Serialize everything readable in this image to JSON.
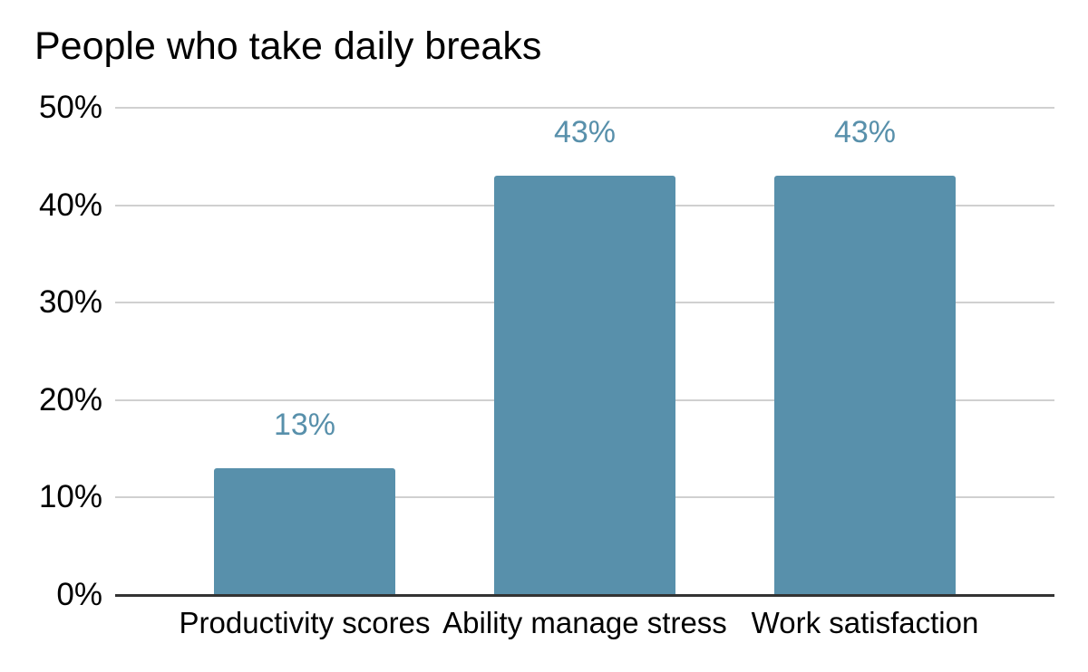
{
  "chart_data": {
    "type": "bar",
    "title": "People who take daily breaks",
    "categories": [
      "Productivity scores",
      "Ability manage stress",
      "Work satisfaction"
    ],
    "values": [
      13,
      43,
      43
    ],
    "data_labels": [
      "13%",
      "43%",
      "43%"
    ],
    "yticks": {
      "values": [
        0,
        10,
        20,
        30,
        40,
        50
      ],
      "labels": [
        "0%",
        "10%",
        "20%",
        "30%",
        "40%",
        "50%"
      ]
    },
    "ylim": [
      0,
      50
    ],
    "xlabel": "",
    "ylabel": "",
    "grid": true,
    "legend_position": "none",
    "colors": {
      "bar": "#5890ab",
      "data_label": "#5890ab",
      "gridline": "#d0d0d0",
      "zero_line": "#333333",
      "text": "#000000",
      "background": "#ffffff"
    }
  }
}
